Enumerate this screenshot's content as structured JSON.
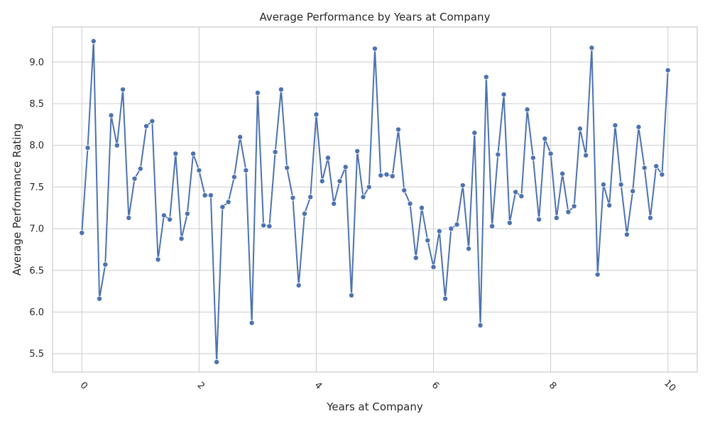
{
  "chart_data": {
    "type": "line",
    "title": "Average Performance by Years at Company",
    "xlabel": "Years at Company",
    "ylabel": "Average Performance Rating",
    "xlim": [
      -0.5,
      10.5
    ],
    "ylim": [
      5.28,
      9.42
    ],
    "xticks": [
      0,
      2,
      4,
      6,
      8,
      10
    ],
    "yticks": [
      5.5,
      6.0,
      6.5,
      7.0,
      7.5,
      8.0,
      8.5,
      9.0
    ],
    "xtick_labels": [
      "0",
      "2",
      "4",
      "6",
      "8",
      "10"
    ],
    "ytick_labels": [
      "5.5",
      "6.0",
      "6.5",
      "7.0",
      "7.5",
      "8.0",
      "8.5",
      "9.0"
    ],
    "grid": true,
    "color": "#4c72b0",
    "series": [
      {
        "x": [
          0.0,
          0.1,
          0.2,
          0.3,
          0.4,
          0.5,
          0.6,
          0.7,
          0.8,
          0.9,
          1.0,
          1.1,
          1.2,
          1.3,
          1.4,
          1.5,
          1.6,
          1.7,
          1.8,
          1.9,
          2.0,
          2.1,
          2.2,
          2.3,
          2.4,
          2.5,
          2.6,
          2.7,
          2.8,
          2.9,
          3.0,
          3.1,
          3.2,
          3.3,
          3.4,
          3.5,
          3.6,
          3.7,
          3.8,
          3.9,
          4.0,
          4.1,
          4.2,
          4.3,
          4.4,
          4.5,
          4.6,
          4.7,
          4.8,
          4.9,
          5.0,
          5.1,
          5.2,
          5.3,
          5.4,
          5.5,
          5.6,
          5.7,
          5.8,
          5.9,
          6.0,
          6.1,
          6.2,
          6.3,
          6.4,
          6.5,
          6.6,
          6.7,
          6.8,
          6.9,
          7.0,
          7.1,
          7.2,
          7.3,
          7.4,
          7.5,
          7.6,
          7.7,
          7.8,
          7.9,
          8.0,
          8.1,
          8.2,
          8.3,
          8.4,
          8.5,
          8.6,
          8.7,
          8.8,
          8.9,
          9.0,
          9.1,
          9.2,
          9.3,
          9.4,
          9.5,
          9.6,
          9.7,
          9.8,
          9.9,
          10.0
        ],
        "y": [
          6.95,
          7.97,
          9.25,
          6.16,
          6.57,
          8.36,
          8.0,
          8.67,
          7.13,
          7.6,
          7.72,
          8.23,
          8.29,
          6.63,
          7.16,
          7.11,
          7.9,
          6.88,
          7.18,
          7.9,
          7.7,
          7.4,
          7.4,
          5.4,
          7.26,
          7.32,
          7.62,
          8.1,
          7.7,
          5.87,
          8.63,
          7.04,
          7.03,
          7.92,
          8.67,
          7.73,
          7.37,
          6.32,
          7.18,
          7.38,
          8.37,
          7.57,
          7.85,
          7.3,
          7.57,
          7.74,
          6.2,
          7.93,
          7.38,
          7.5,
          9.16,
          7.64,
          7.65,
          7.63,
          8.19,
          7.46,
          7.3,
          6.65,
          7.25,
          6.86,
          6.54,
          6.97,
          6.16,
          7.0,
          7.05,
          7.52,
          6.76,
          8.15,
          5.84,
          8.82,
          7.03,
          7.89,
          8.61,
          7.07,
          7.44,
          7.39,
          8.43,
          7.85,
          7.11,
          8.08,
          7.9,
          7.13,
          7.66,
          7.2,
          7.27,
          8.2,
          7.88,
          9.17,
          6.45,
          7.53,
          7.28,
          8.24,
          7.53,
          6.93,
          7.45,
          8.22,
          7.73,
          7.13,
          7.75,
          7.65,
          8.9
        ]
      }
    ]
  }
}
